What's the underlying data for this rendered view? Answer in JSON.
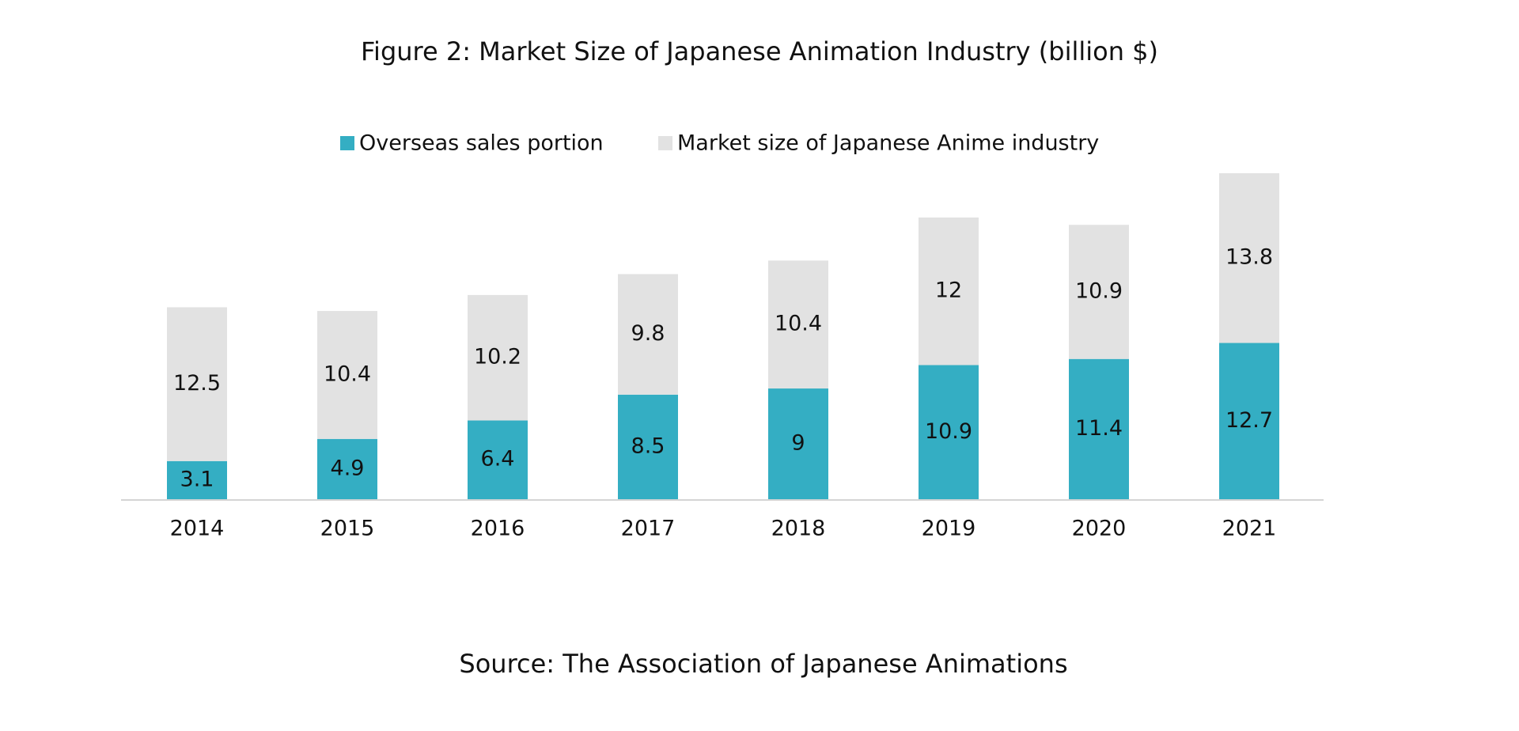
{
  "chart_data": {
    "type": "stacked_bar",
    "title": "Figure 2: Market Size of Japanese Animation Industry (billion $)",
    "categories": [
      "2014",
      "2015",
      "2016",
      "2017",
      "2018",
      "2019",
      "2020",
      "2021"
    ],
    "series": [
      {
        "name": "Overseas sales portion",
        "color": "#34aec3",
        "values": [
          3.1,
          4.9,
          6.4,
          8.5,
          9.0,
          10.9,
          11.4,
          12.7
        ]
      },
      {
        "name": "Market size of Japanese Anime industry",
        "color": "#e2e2e2",
        "values": [
          12.5,
          10.4,
          10.2,
          9.8,
          10.4,
          12.0,
          10.9,
          13.8
        ]
      }
    ],
    "source": "Source: The Association of Japanese Animations"
  }
}
